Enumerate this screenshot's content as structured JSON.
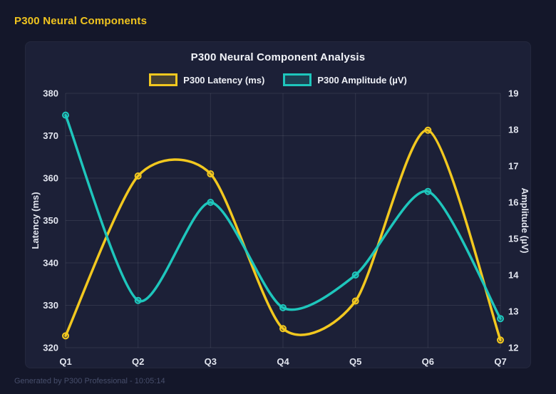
{
  "header": {
    "title": "P300 Neural Components"
  },
  "footer": {
    "text": "Generated by P300 Professional - 10:05:14"
  },
  "colors": {
    "page_bg": "#14172a",
    "panel_bg": "#1c2037",
    "latency_line": "#f2c81f",
    "amplitude_line": "#1ec6bc",
    "grid": "rgba(255,255,255,0.09)",
    "tick_text": "#e2e5ef",
    "title_text": "#f3f5fa",
    "header_text": "#f0c41f",
    "footer_text": "#474e6b"
  },
  "chart_data": {
    "type": "line",
    "title": "P300 Neural Component Analysis",
    "categories": [
      "Q1",
      "Q2",
      "Q3",
      "Q4",
      "Q5",
      "Q6",
      "Q7"
    ],
    "series": [
      {
        "name": "P300 Latency (ms)",
        "axis": "left",
        "color": "#f2c81f",
        "values": [
          322.8,
          360.5,
          361.0,
          324.5,
          331.0,
          371.3,
          321.8
        ]
      },
      {
        "name": "P300 Amplitude (µV)",
        "axis": "right",
        "color": "#1ec6bc",
        "values": [
          18.4,
          13.3,
          16.0,
          13.1,
          14.0,
          16.3,
          12.8
        ]
      }
    ],
    "left_axis": {
      "label": "Latency (ms)",
      "min": 320,
      "max": 380,
      "ticks": [
        320,
        330,
        340,
        350,
        360,
        370,
        380
      ]
    },
    "right_axis": {
      "label": "Amplitude (µV)",
      "min": 12,
      "max": 19,
      "ticks": [
        12,
        13,
        14,
        15,
        16,
        17,
        18,
        19
      ]
    },
    "grid": true,
    "smooth": true,
    "legend_position": "top"
  }
}
